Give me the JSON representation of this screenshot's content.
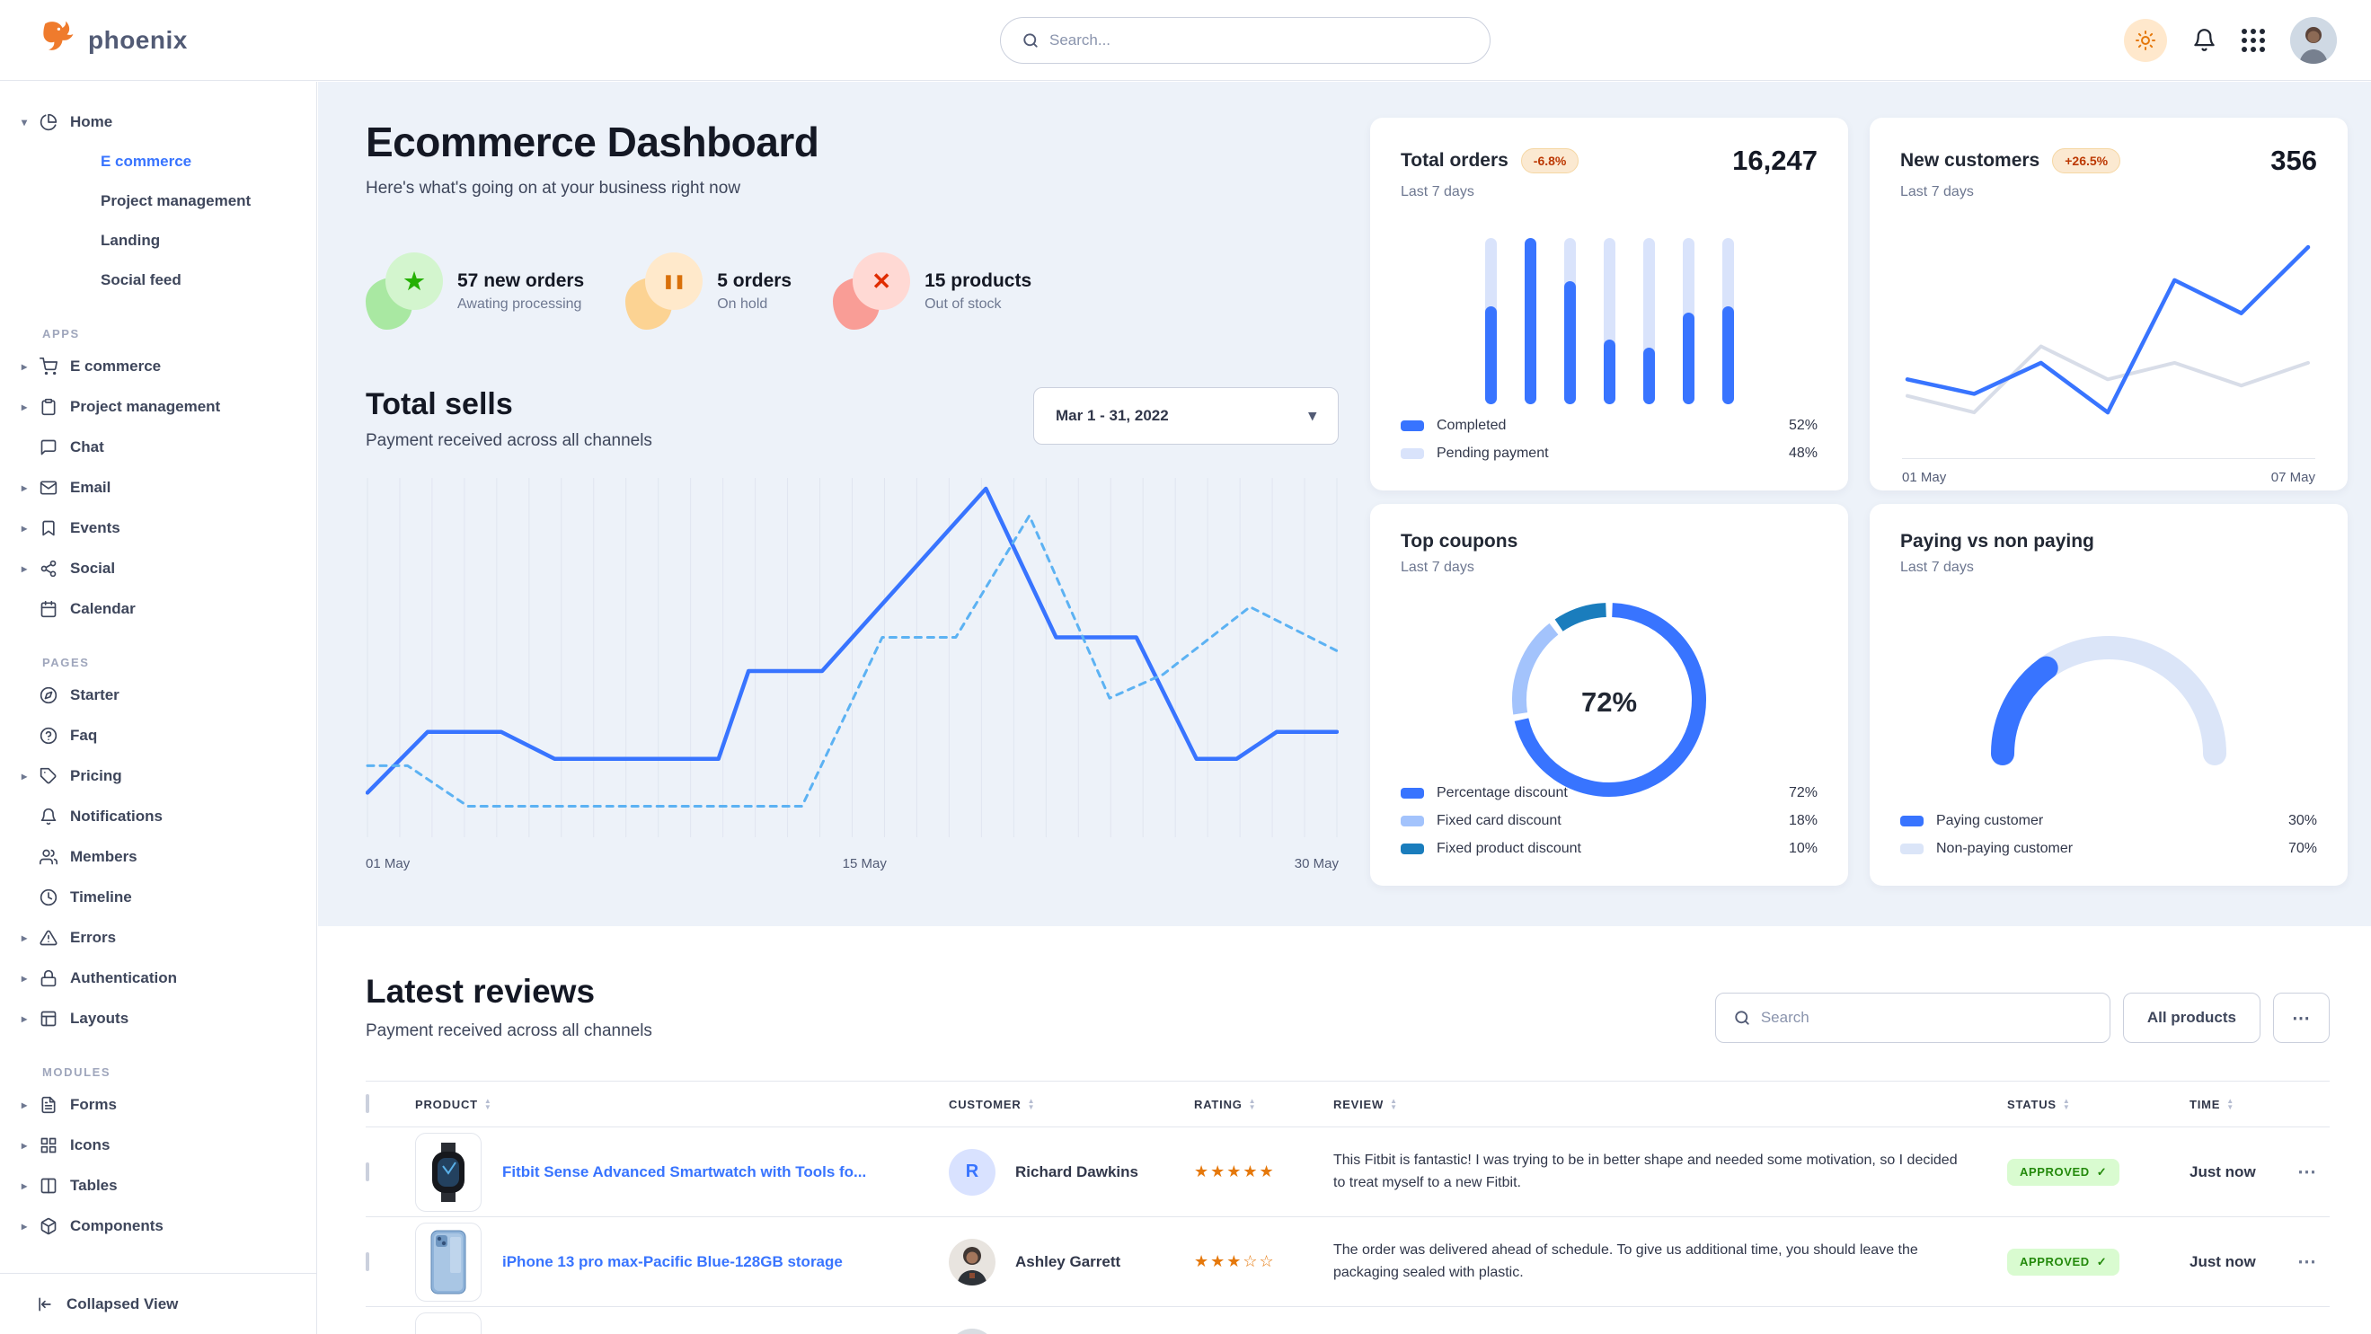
{
  "brand": {
    "name": "phoenix"
  },
  "topbar": {
    "search_placeholder": "Search..."
  },
  "sidebar": {
    "home_group": {
      "icon": "pie-chart",
      "label": "Home",
      "children": [
        {
          "label": "E commerce",
          "active": true
        },
        {
          "label": "Project management",
          "active": false
        },
        {
          "label": "Landing",
          "active": false
        },
        {
          "label": "Social feed",
          "active": false
        }
      ]
    },
    "sections": [
      {
        "title": "APPS",
        "items": [
          {
            "icon": "shopping-cart",
            "label": "E commerce",
            "caret": true
          },
          {
            "icon": "clipboard",
            "label": "Project management",
            "caret": true
          },
          {
            "icon": "message-square",
            "label": "Chat",
            "caret": false
          },
          {
            "icon": "mail",
            "label": "Email",
            "caret": true
          },
          {
            "icon": "bookmark",
            "label": "Events",
            "caret": true
          },
          {
            "icon": "share-2",
            "label": "Social",
            "caret": true
          },
          {
            "icon": "calendar",
            "label": "Calendar",
            "caret": false
          }
        ]
      },
      {
        "title": "PAGES",
        "items": [
          {
            "icon": "compass",
            "label": "Starter",
            "caret": false
          },
          {
            "icon": "help-circle",
            "label": "Faq",
            "caret": false
          },
          {
            "icon": "tag",
            "label": "Pricing",
            "caret": true
          },
          {
            "icon": "bell",
            "label": "Notifications",
            "caret": false
          },
          {
            "icon": "users",
            "label": "Members",
            "caret": false
          },
          {
            "icon": "clock",
            "label": "Timeline",
            "caret": false
          },
          {
            "icon": "alert-triangle",
            "label": "Errors",
            "caret": true
          },
          {
            "icon": "lock",
            "label": "Authentication",
            "caret": true
          },
          {
            "icon": "layout",
            "label": "Layouts",
            "caret": true
          }
        ]
      },
      {
        "title": "MODULES",
        "items": [
          {
            "icon": "file-text",
            "label": "Forms",
            "caret": true
          },
          {
            "icon": "grid",
            "label": "Icons",
            "caret": true
          },
          {
            "icon": "columns",
            "label": "Tables",
            "caret": true
          },
          {
            "icon": "package",
            "label": "Components",
            "caret": true
          }
        ]
      }
    ],
    "collapse_label": "Collapsed View"
  },
  "hero": {
    "title": "Ecommerce Dashboard",
    "subtitle": "Here's what's going on at your business right now",
    "stats": [
      {
        "value": "57 new orders",
        "label": "Awating processing",
        "icon": "star",
        "glyph_color": "#25b003",
        "circle_bg": "#d3f5ce",
        "blob_bg": "#a9e8a2"
      },
      {
        "value": "5 orders",
        "label": "On hold",
        "icon": "pause",
        "glyph_color": "#d9700a",
        "circle_bg": "#ffe9cb",
        "blob_bg": "#fcd393"
      },
      {
        "value": "15 products",
        "label": "Out of stock",
        "icon": "x",
        "glyph_color": "#e02d00",
        "circle_bg": "#ffd9d4",
        "blob_bg": "#f99d96"
      }
    ]
  },
  "total_sells": {
    "title": "Total sells",
    "subtitle": "Payment received across all channels",
    "date_range": "Mar 1 - 31, 2022"
  },
  "cards": {
    "total_orders": {
      "title": "Total orders",
      "badge": "-6.8%",
      "period": "Last 7 days",
      "value": "16,247",
      "legend": [
        {
          "label": "Completed",
          "value": "52%",
          "color": "#3874ff"
        },
        {
          "label": "Pending payment",
          "value": "48%",
          "color": "#d9e3fb"
        }
      ]
    },
    "new_customers": {
      "title": "New customers",
      "badge": "+26.5%",
      "period": "Last 7 days",
      "value": "356",
      "x_labels": [
        "01 May",
        "07 May"
      ]
    },
    "top_coupons": {
      "title": "Top coupons",
      "period": "Last 7 days",
      "center_label": "72%"
    },
    "paying": {
      "title": "Paying vs non paying",
      "period": "Last 7 days"
    }
  },
  "reviews": {
    "title": "Latest reviews",
    "subtitle": "Payment received across all channels",
    "search_placeholder": "Search",
    "filter_label": "All products",
    "columns": [
      "PRODUCT",
      "CUSTOMER",
      "RATING",
      "REVIEW",
      "STATUS",
      "TIME"
    ],
    "rows": [
      {
        "product": "Fitbit Sense Advanced Smartwatch with Tools fo...",
        "image": "smartwatch",
        "customer": "Richard Dawkins",
        "avatar_type": "initial",
        "avatar_text": "R",
        "rating": 5,
        "rating_max": 5,
        "review": "This Fitbit is fantastic! I was trying to be in better shape and needed some motivation, so I decided to treat myself to a new Fitbit.",
        "status": "APPROVED",
        "time": "Just now"
      },
      {
        "product": "iPhone 13 pro max-Pacific Blue-128GB storage",
        "image": "iphone",
        "customer": "Ashley Garrett",
        "avatar_type": "photo",
        "avatar_text": "",
        "rating": 3,
        "rating_max": 5,
        "review": "The order was delivered ahead of schedule. To give us additional time, you should leave the packaging sealed with plastic.",
        "status": "APPROVED",
        "time": "Just now"
      }
    ],
    "partial_row_visible": true
  },
  "chart_data": [
    {
      "id": "total-sells",
      "type": "line",
      "title": "Total sells",
      "x_labels": [
        "01 May",
        "15 May",
        "30 May"
      ],
      "x_range": [
        1,
        30
      ],
      "y_range": [
        0,
        100
      ],
      "grid": "vertical",
      "grid_lines": 31,
      "legend_position": "none",
      "series": [
        {
          "name": "current period",
          "style": "solid",
          "color": "#3874ff",
          "points": [
            [
              1,
              10
            ],
            [
              2.8,
              28
            ],
            [
              5,
              28
            ],
            [
              6.6,
              20
            ],
            [
              11.5,
              20
            ],
            [
              12.4,
              46
            ],
            [
              14.6,
              46
            ],
            [
              19.5,
              100
            ],
            [
              21.6,
              56
            ],
            [
              24,
              56
            ],
            [
              25.8,
              20
            ],
            [
              27,
              20
            ],
            [
              28.2,
              28
            ],
            [
              30,
              28
            ]
          ]
        },
        {
          "name": "previous period",
          "style": "dashed",
          "color": "#5cb2f3",
          "points": [
            [
              1,
              18
            ],
            [
              2.2,
              18
            ],
            [
              4,
              6
            ],
            [
              14,
              6
            ],
            [
              16.4,
              56
            ],
            [
              18.6,
              56
            ],
            [
              20.8,
              92
            ],
            [
              23.2,
              38
            ],
            [
              24.8,
              45
            ],
            [
              27.4,
              65
            ],
            [
              30,
              52
            ]
          ]
        }
      ]
    },
    {
      "id": "total-orders",
      "type": "bar",
      "stacked": true,
      "categories": [
        "1",
        "2",
        "3",
        "4",
        "5",
        "6",
        "7"
      ],
      "series": [
        {
          "name": "Completed",
          "color": "#3874ff",
          "values": [
            59,
            100,
            74,
            39,
            34,
            55,
            59
          ]
        },
        {
          "name": "Pending payment",
          "color": "#d9e3fb",
          "values": [
            41,
            0,
            26,
            61,
            66,
            45,
            41
          ]
        }
      ],
      "ylim": [
        0,
        100
      ]
    },
    {
      "id": "new-customers",
      "type": "line",
      "x_labels": [
        "01 May",
        "07 May"
      ],
      "series": [
        {
          "name": "previous",
          "color": "#d8dde8",
          "values": [
            21,
            13,
            45,
            29,
            37,
            26,
            37
          ]
        },
        {
          "name": "new customers",
          "color": "#3874ff",
          "values": [
            29,
            22,
            37,
            13,
            77,
            61,
            93
          ]
        }
      ],
      "ylim": [
        0,
        100
      ]
    },
    {
      "id": "top-coupons",
      "type": "donut",
      "center_label": "72%",
      "slices": [
        {
          "label": "Percentage discount",
          "value": 72,
          "color": "#3874ff"
        },
        {
          "label": "Fixed card discount",
          "value": 18,
          "color": "#a3c3fc"
        },
        {
          "label": "Fixed product discount",
          "value": 10,
          "color": "#1a7dbd"
        }
      ]
    },
    {
      "id": "paying-gauge",
      "type": "gauge",
      "slices": [
        {
          "label": "Paying customer",
          "value": 30,
          "color": "#3874ff"
        },
        {
          "label": "Non-paying customer",
          "value": 70,
          "color": "#dbe5f8"
        }
      ]
    }
  ]
}
